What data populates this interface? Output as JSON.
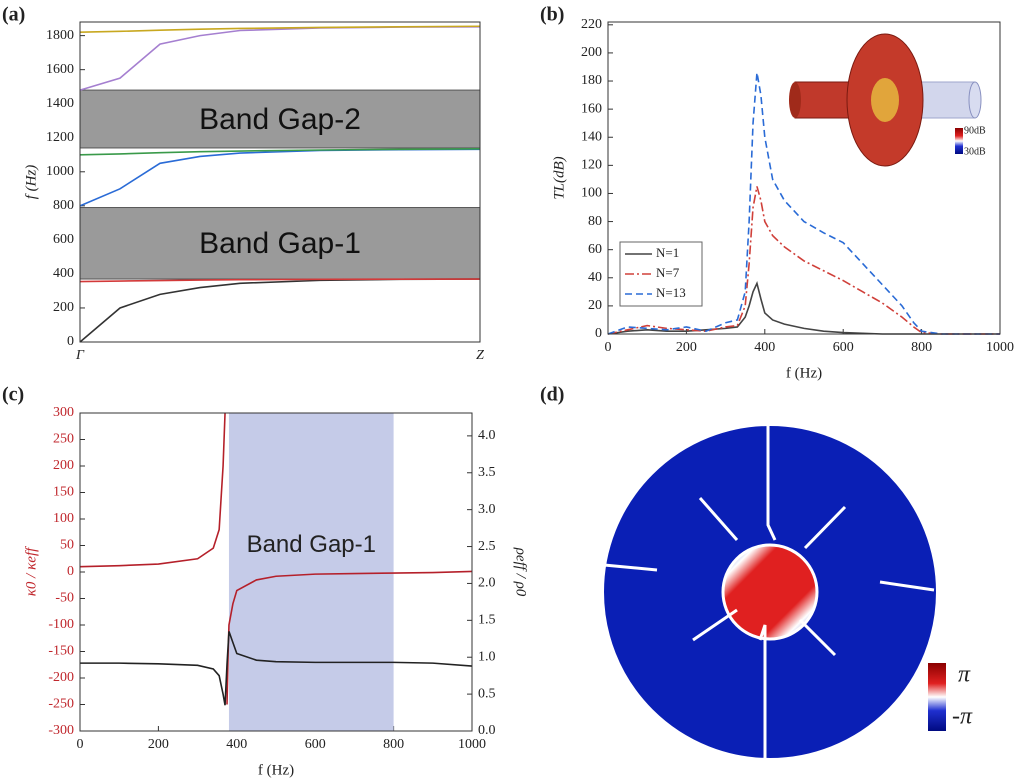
{
  "chart_data": [
    {
      "type": "band",
      "panel_label": "(a)",
      "y_label": "f (Hz)",
      "xlim": [
        0,
        1
      ],
      "xticks": [
        {
          "value": 0,
          "label": "Γ"
        },
        {
          "value": 1,
          "label": "Z"
        }
      ],
      "ylim": [
        0,
        1880
      ],
      "yticks": [
        0,
        200,
        400,
        600,
        800,
        1000,
        1200,
        1400,
        1600,
        1800
      ],
      "band_gaps": [
        {
          "label": "Band Gap-2",
          "range": [
            1140,
            1480
          ]
        },
        {
          "label": "Band Gap-1",
          "range": [
            370,
            790
          ]
        }
      ],
      "x": [
        0,
        0.1,
        0.2,
        0.3,
        0.4,
        0.6,
        0.8,
        1
      ],
      "series": [
        {
          "color": "#333333",
          "values": [
            0,
            200,
            280,
            320,
            345,
            362,
            368,
            370
          ]
        },
        {
          "color": "#d33a3a",
          "values": [
            355,
            358,
            361,
            364,
            366,
            368,
            369,
            370
          ]
        },
        {
          "color": "#2a6bd6",
          "values": [
            800,
            900,
            1050,
            1090,
            1110,
            1125,
            1130,
            1132
          ]
        },
        {
          "color": "#3a9a4a",
          "values": [
            1100,
            1105,
            1112,
            1118,
            1122,
            1128,
            1132,
            1135
          ]
        },
        {
          "color": "#a57fd0",
          "values": [
            1480,
            1550,
            1750,
            1800,
            1830,
            1845,
            1850,
            1852
          ]
        },
        {
          "color": "#c8a820",
          "values": [
            1820,
            1825,
            1832,
            1838,
            1842,
            1848,
            1852,
            1855
          ]
        }
      ]
    },
    {
      "type": "line",
      "panel_label": "(b)",
      "x_label": "f (Hz)",
      "y_label": "TL(dB)",
      "xlim": [
        0,
        1000
      ],
      "xticks": [
        0,
        200,
        400,
        600,
        800,
        1000
      ],
      "ylim": [
        0,
        222
      ],
      "yticks": [
        0,
        20,
        40,
        60,
        80,
        100,
        120,
        140,
        160,
        180,
        200,
        220
      ],
      "inset_colorbar_labels": [
        "90dB",
        "30dB"
      ],
      "legend": "lower-left",
      "x": [
        0,
        50,
        100,
        150,
        200,
        250,
        300,
        330,
        350,
        360,
        370,
        380,
        390,
        400,
        420,
        450,
        500,
        550,
        600,
        650,
        700,
        750,
        780,
        800,
        850,
        900,
        1000
      ],
      "series": [
        {
          "name": "N=1",
          "color": "#444444",
          "dash": "solid",
          "values": [
            0,
            2,
            3,
            2,
            2,
            3,
            4,
            5,
            12,
            20,
            30,
            36,
            25,
            15,
            10,
            7,
            4,
            2,
            1,
            0.5,
            0,
            0,
            0,
            0,
            0,
            0,
            0
          ]
        },
        {
          "name": "N=7",
          "color": "#d0403a",
          "dash": "dashdot",
          "values": [
            0,
            3,
            6,
            4,
            3,
            2,
            5,
            6,
            20,
            50,
            90,
            105,
            95,
            80,
            70,
            62,
            52,
            45,
            38,
            30,
            22,
            12,
            5,
            1,
            0,
            0,
            0
          ]
        },
        {
          "name": "N=13",
          "color": "#2a6bd6",
          "dash": "dashed",
          "values": [
            0,
            5,
            4,
            3,
            5,
            2,
            8,
            10,
            30,
            80,
            150,
            186,
            170,
            140,
            110,
            95,
            80,
            72,
            65,
            50,
            35,
            20,
            8,
            2,
            0,
            0,
            0
          ]
        }
      ]
    },
    {
      "type": "dual_line",
      "panel_label": "(c)",
      "x_label": "f (Hz)",
      "y_label": "κ0 / κeff",
      "y2_label": "ρeff / ρ0",
      "y_axis_color": "#c0272d",
      "xlim": [
        0,
        1000
      ],
      "xticks": [
        0,
        200,
        400,
        600,
        800,
        1000
      ],
      "ylim": [
        -300,
        300
      ],
      "yticks": [
        -300,
        -250,
        -200,
        -150,
        -100,
        -50,
        0,
        50,
        100,
        150,
        200,
        250,
        300
      ],
      "y2lim": [
        0,
        4.31
      ],
      "y2ticks": [
        {
          "value": 0,
          "label": "0.0"
        },
        0.5,
        {
          "value": 1,
          "label": "1.0"
        },
        1.5,
        {
          "value": 2,
          "label": "2.0"
        },
        2.5,
        {
          "value": 3,
          "label": "3.0"
        },
        3.5,
        {
          "value": 4,
          "label": "4.0"
        }
      ],
      "shaded": {
        "label": "Band Gap-1",
        "range": [
          380,
          800
        ],
        "color": "#c5cbe8"
      },
      "series": [
        {
          "color": "#b5202a",
          "x": [
            0,
            100,
            200,
            300,
            340,
            355,
            365,
            370,
            372,
            375,
            378,
            380,
            390,
            400,
            450,
            500,
            600,
            700,
            800,
            900,
            1000
          ],
          "values": [
            10,
            12,
            15,
            25,
            45,
            80,
            200,
            300,
            null,
            -250,
            -150,
            -100,
            -60,
            -35,
            -15,
            -8,
            -4,
            -3,
            -2,
            -1,
            1
          ]
        },
        {
          "color": "#222222",
          "axis": "y2",
          "x": [
            0,
            100,
            200,
            300,
            340,
            355,
            365,
            370,
            375,
            380,
            390,
            400,
            450,
            500,
            600,
            700,
            800,
            900,
            1000
          ],
          "values": [
            0.92,
            0.92,
            0.91,
            0.89,
            0.84,
            0.75,
            0.5,
            0.35,
            0.9,
            1.35,
            1.2,
            1.05,
            0.96,
            0.94,
            0.93,
            0.93,
            0.93,
            0.92,
            0.88
          ]
        }
      ]
    },
    {
      "type": "field",
      "panel_label": "(d)",
      "colorbar_labels": [
        "π",
        "-π"
      ]
    }
  ]
}
